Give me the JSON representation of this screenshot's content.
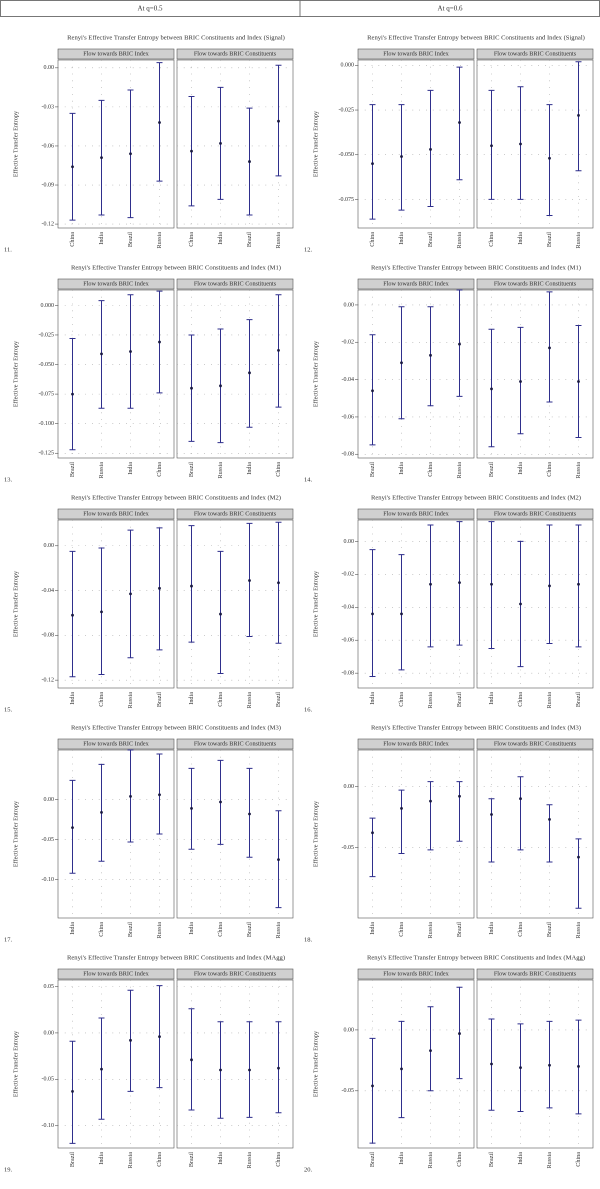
{
  "header": {
    "columns": [
      "At q=0.5",
      "At q=0.6"
    ]
  },
  "chart_data": [
    {
      "type": "errorbar",
      "title": "Renyi's Effective Transfer Entropy between BRIC Constituents and Index (Signal)",
      "number": "11.",
      "ylabel": "Effective Transfer Entropy",
      "color": "#2f2f8c",
      "grid": true,
      "ylim": [
        -0.123,
        0.006
      ],
      "yticks": [
        {
          "value": 0,
          "label": "0.00"
        },
        -0.03,
        -0.06,
        -0.09,
        -0.12
      ],
      "panels": [
        {
          "strip": "Flow towards BRIC Index",
          "categories": [
            "China",
            "India",
            "Brazil",
            "Russia"
          ],
          "values": [
            -0.076,
            -0.069,
            -0.066,
            -0.042
          ],
          "low": [
            -0.117,
            -0.113,
            -0.115,
            -0.087
          ],
          "high": [
            -0.035,
            -0.025,
            -0.017,
            0.004
          ]
        },
        {
          "strip": "Flow towards BRIC Constituents",
          "categories": [
            "China",
            "India",
            "Brazil",
            "Russia"
          ],
          "values": [
            -0.064,
            -0.058,
            -0.072,
            -0.041
          ],
          "low": [
            -0.106,
            -0.101,
            -0.113,
            -0.083
          ],
          "high": [
            -0.022,
            -0.015,
            -0.031,
            0.002
          ]
        }
      ]
    },
    {
      "type": "errorbar",
      "title": "Renyi's Effective Transfer Entropy between BRIC Constituents and Index (Signal)",
      "number": "12.",
      "ylabel": "Effective Transfer Entropy",
      "color": "#2f2f8c",
      "grid": true,
      "ylim": [
        -0.091,
        0.003
      ],
      "yticks": [
        {
          "value": 0,
          "label": "0.000"
        },
        -0.025,
        {
          "value": -0.05,
          "label": "-0.050"
        },
        -0.075
      ],
      "panels": [
        {
          "strip": "Flow towards BRIC Index",
          "categories": [
            "China",
            "India",
            "Brazil",
            "Russia"
          ],
          "values": [
            -0.055,
            -0.051,
            -0.047,
            -0.032
          ],
          "low": [
            -0.086,
            -0.081,
            -0.079,
            -0.064
          ],
          "high": [
            -0.022,
            -0.022,
            -0.014,
            -0.001
          ]
        },
        {
          "strip": "Flow towards BRIC Constituents",
          "categories": [
            "China",
            "India",
            "Brazil",
            "Russia"
          ],
          "values": [
            -0.045,
            -0.044,
            -0.052,
            -0.028
          ],
          "low": [
            -0.075,
            -0.075,
            -0.084,
            -0.059
          ],
          "high": [
            -0.014,
            -0.012,
            -0.022,
            0.002
          ]
        }
      ]
    },
    {
      "type": "errorbar",
      "title": "Renyi's Effective Transfer Entropy between BRIC Constituents and Index (M1)",
      "number": "13.",
      "ylabel": "Effective Transfer Entropy",
      "color": "#2f2f8c",
      "grid": true,
      "ylim": [
        -0.129,
        0.013
      ],
      "yticks": [
        {
          "value": 0,
          "label": "0.000"
        },
        -0.025,
        {
          "value": -0.05,
          "label": "-0.050"
        },
        -0.075,
        {
          "value": -0.1,
          "label": "-0.100"
        },
        -0.125
      ],
      "panels": [
        {
          "strip": "Flow towards BRIC Index",
          "categories": [
            "Brazil",
            "Russia",
            "India",
            "China"
          ],
          "values": [
            -0.075,
            -0.041,
            -0.039,
            -0.031
          ],
          "low": [
            -0.122,
            -0.087,
            -0.087,
            -0.074
          ],
          "high": [
            -0.028,
            0.004,
            0.009,
            0.012
          ]
        },
        {
          "strip": "Flow towards BRIC Constituents",
          "categories": [
            "Brazil",
            "Russia",
            "India",
            "China"
          ],
          "values": [
            -0.07,
            -0.068,
            -0.057,
            -0.038
          ],
          "low": [
            -0.115,
            -0.116,
            -0.103,
            -0.086
          ],
          "high": [
            -0.025,
            -0.02,
            -0.012,
            0.009
          ]
        }
      ]
    },
    {
      "type": "errorbar",
      "title": "Renyi's Effective Transfer Entropy between BRIC Constituents and Index (M1)",
      "number": "14.",
      "ylabel": "Effective Transfer Entropy",
      "color": "#2f2f8c",
      "grid": true,
      "ylim": [
        -0.082,
        0.008
      ],
      "yticks": [
        {
          "value": 0,
          "label": "0.00"
        },
        -0.02,
        -0.04,
        -0.06,
        -0.08
      ],
      "panels": [
        {
          "strip": "Flow towards BRIC Index",
          "categories": [
            "Brazil",
            "India",
            "China",
            "Russia"
          ],
          "values": [
            -0.046,
            -0.031,
            -0.027,
            -0.021
          ],
          "low": [
            -0.075,
            -0.061,
            -0.054,
            -0.049
          ],
          "high": [
            -0.016,
            -0.001,
            -0.001,
            0.008
          ]
        },
        {
          "strip": "Flow towards BRIC Constituents",
          "categories": [
            "Brazil",
            "India",
            "China",
            "Russia"
          ],
          "values": [
            -0.045,
            -0.041,
            -0.023,
            -0.041
          ],
          "low": [
            -0.076,
            -0.069,
            -0.052,
            -0.071
          ],
          "high": [
            -0.013,
            -0.012,
            0.007,
            -0.011
          ]
        }
      ]
    },
    {
      "type": "errorbar",
      "title": "Renyi's Effective Transfer Entropy between BRIC Constituents and Index (M2)",
      "number": "15.",
      "ylabel": "Effective Transfer Entropy",
      "color": "#2f2f8c",
      "grid": true,
      "ylim": [
        -0.127,
        0.023
      ],
      "yticks": [
        {
          "value": 0,
          "label": "0.00"
        },
        -0.04,
        -0.08,
        -0.12
      ],
      "panels": [
        {
          "strip": "Flow towards BRIC Index",
          "categories": [
            "India",
            "China",
            "Russia",
            "Brazil"
          ],
          "values": [
            -0.062,
            -0.059,
            -0.043,
            -0.038
          ],
          "low": [
            -0.117,
            -0.115,
            -0.1,
            -0.093
          ],
          "high": [
            -0.005,
            -0.002,
            0.014,
            0.016
          ]
        },
        {
          "strip": "Flow towards BRIC Constituents",
          "categories": [
            "India",
            "China",
            "Russia",
            "Brazil"
          ],
          "values": [
            -0.036,
            -0.061,
            -0.031,
            -0.033
          ],
          "low": [
            -0.086,
            -0.114,
            -0.081,
            -0.087
          ],
          "high": [
            0.018,
            -0.005,
            0.02,
            0.021
          ]
        }
      ]
    },
    {
      "type": "errorbar",
      "title": "Renyi's Effective Transfer Entropy between BRIC Constituents and Index (M2)",
      "number": "16.",
      "ylabel": "Effective Transfer Entropy",
      "color": "#2f2f8c",
      "grid": true,
      "ylim": [
        -0.089,
        0.013
      ],
      "yticks": [
        {
          "value": 0,
          "label": "0.00"
        },
        -0.02,
        -0.04,
        -0.06,
        -0.08
      ],
      "panels": [
        {
          "strip": "Flow towards BRIC Index",
          "categories": [
            "India",
            "China",
            "Russia",
            "Brazil"
          ],
          "values": [
            -0.044,
            -0.044,
            -0.026,
            -0.025
          ],
          "low": [
            -0.082,
            -0.078,
            -0.064,
            -0.063
          ],
          "high": [
            -0.005,
            -0.008,
            0.01,
            0.012
          ]
        },
        {
          "strip": "Flow towards BRIC Constituents",
          "categories": [
            "India",
            "China",
            "Russia",
            "Brazil"
          ],
          "values": [
            -0.026,
            -0.038,
            -0.027,
            -0.026
          ],
          "low": [
            -0.065,
            -0.076,
            -0.062,
            -0.064
          ],
          "high": [
            0.012,
            0,
            0.01,
            0.01
          ]
        }
      ]
    },
    {
      "type": "errorbar",
      "title": "Renyi's Effective Transfer Entropy between BRIC Constituents and Index (M3)",
      "number": "17.",
      "ylabel": "Effective Transfer Entropy",
      "color": "#2f2f8c",
      "grid": true,
      "ylim": [
        -0.148,
        0.062
      ],
      "yticks": [
        {
          "value": 0,
          "label": "0.00"
        },
        -0.05,
        {
          "value": -0.1,
          "label": "-0.10"
        }
      ],
      "panels": [
        {
          "strip": "Flow towards BRIC Index",
          "categories": [
            "India",
            "China",
            "Brazil",
            "Russia"
          ],
          "values": [
            -0.035,
            -0.016,
            0.004,
            0.006
          ],
          "low": [
            -0.092,
            -0.077,
            -0.053,
            -0.043
          ],
          "high": [
            0.024,
            0.044,
            0.062,
            0.057
          ]
        },
        {
          "strip": "Flow towards BRIC Constituents",
          "categories": [
            "India",
            "China",
            "Brazil",
            "Russia"
          ],
          "values": [
            -0.011,
            -0.003,
            -0.018,
            -0.075
          ],
          "low": [
            -0.062,
            -0.056,
            -0.072,
            -0.135
          ],
          "high": [
            0.039,
            0.049,
            0.039,
            -0.014
          ]
        }
      ]
    },
    {
      "type": "errorbar",
      "title": "Renyi's Effective Transfer Entropy between BRIC Constituents and Index (M3)",
      "number": "18.",
      "ylabel": "Effective Transfer Entropy",
      "color": "#2f2f8c",
      "grid": true,
      "ylim": [
        -0.108,
        0.03
      ],
      "yticks": [
        {
          "value": 0,
          "label": "0.00"
        },
        -0.05
      ],
      "panels": [
        {
          "strip": "Flow towards BRIC Index",
          "categories": [
            "India",
            "China",
            "Russia",
            "Brazil"
          ],
          "values": [
            -0.038,
            -0.018,
            -0.012,
            -0.008
          ],
          "low": [
            -0.074,
            -0.055,
            -0.052,
            -0.045
          ],
          "high": [
            -0.026,
            -0.003,
            0.004,
            0.004
          ]
        },
        {
          "strip": "Flow towards BRIC Constituents",
          "categories": [
            "India",
            "China",
            "Brazil",
            "Russia"
          ],
          "values": [
            -0.023,
            -0.01,
            -0.027,
            -0.058
          ],
          "low": [
            -0.062,
            -0.052,
            -0.062,
            -0.1
          ],
          "high": [
            -0.01,
            0.008,
            -0.015,
            -0.043
          ]
        }
      ]
    },
    {
      "type": "errorbar",
      "title": "Renyi's Effective Transfer Entropy between BRIC Constituents and Index (MAgg)",
      "number": "19.",
      "ylabel": "Effective Transfer Entropy",
      "color": "#2f2f8c",
      "grid": true,
      "ylim": [
        -0.124,
        0.057
      ],
      "yticks": [
        0.05,
        {
          "value": 0,
          "label": "0.00"
        },
        -0.05,
        {
          "value": -0.1,
          "label": "-0.10"
        }
      ],
      "panels": [
        {
          "strip": "Flow towards BRIC Index",
          "categories": [
            "Brazil",
            "India",
            "Russia",
            "China"
          ],
          "values": [
            -0.063,
            -0.039,
            -0.008,
            -0.004
          ],
          "low": [
            -0.119,
            -0.093,
            -0.063,
            -0.059
          ],
          "high": [
            -0.009,
            0.016,
            0.046,
            0.051
          ]
        },
        {
          "strip": "Flow towards BRIC Constituents",
          "categories": [
            "Brazil",
            "India",
            "Russia",
            "China"
          ],
          "values": [
            -0.029,
            -0.04,
            -0.04,
            -0.038
          ],
          "low": [
            -0.083,
            -0.092,
            -0.091,
            -0.086
          ],
          "high": [
            0.026,
            0.012,
            0.012,
            0.012
          ]
        }
      ]
    },
    {
      "type": "errorbar",
      "title": "Renyi's Effective Transfer Entropy between BRIC Constituents and Index (MAgg)",
      "number": "20.",
      "ylabel": "Effective Transfer Entropy",
      "color": "#2f2f8c",
      "grid": true,
      "ylim": [
        -0.097,
        0.041
      ],
      "yticks": [
        {
          "value": 0,
          "label": "0.00"
        },
        -0.05
      ],
      "panels": [
        {
          "strip": "Flow towards BRIC Index",
          "categories": [
            "Brazil",
            "India",
            "Russia",
            "China"
          ],
          "values": [
            -0.046,
            -0.032,
            -0.017,
            -0.003
          ],
          "low": [
            -0.093,
            -0.072,
            -0.05,
            -0.04
          ],
          "high": [
            -0.007,
            0.007,
            0.019,
            0.035
          ]
        },
        {
          "strip": "Flow towards BRIC Constituents",
          "categories": [
            "Brazil",
            "India",
            "Russia",
            "China"
          ],
          "values": [
            -0.028,
            -0.031,
            -0.029,
            -0.03
          ],
          "low": [
            -0.066,
            -0.067,
            -0.064,
            -0.069
          ],
          "high": [
            0.009,
            0.005,
            0.007,
            0.008
          ]
        }
      ]
    }
  ]
}
